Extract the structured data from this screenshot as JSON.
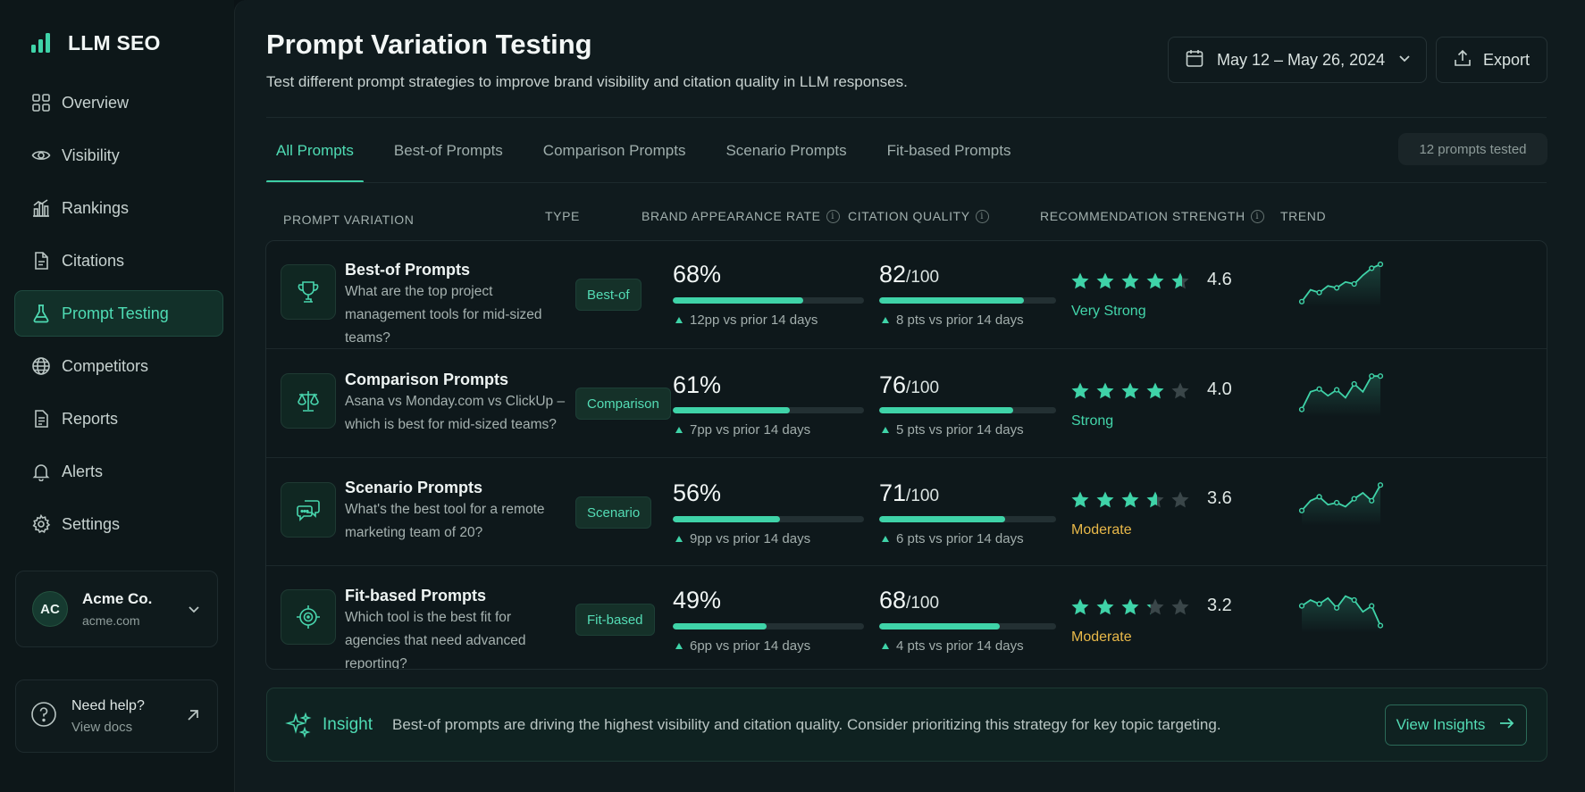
{
  "app": {
    "name": "LLM SEO"
  },
  "sidebar": {
    "items": [
      {
        "label": "Overview",
        "icon": "grid-icon"
      },
      {
        "label": "Visibility",
        "icon": "eye-icon"
      },
      {
        "label": "Rankings",
        "icon": "bar-chart-icon"
      },
      {
        "label": "Citations",
        "icon": "document-icon"
      },
      {
        "label": "Prompt Testing",
        "icon": "flask-icon",
        "active": true
      },
      {
        "label": "Competitors",
        "icon": "globe-icon"
      },
      {
        "label": "Reports",
        "icon": "report-icon"
      },
      {
        "label": "Alerts",
        "icon": "bell-icon"
      },
      {
        "label": "Settings",
        "icon": "gear-icon"
      }
    ],
    "account": {
      "initials": "AC",
      "name": "Acme Co.",
      "domain": "acme.com"
    },
    "help": {
      "title": "Need help?",
      "subtitle": "View docs"
    }
  },
  "header": {
    "title": "Prompt Variation Testing",
    "subtitle": "Test different prompt strategies to improve brand visibility and citation quality in LLM responses.",
    "date_range": "May 12 – May 26, 2024",
    "export_label": "Export"
  },
  "tabs": [
    {
      "label": "All Prompts",
      "active": true
    },
    {
      "label": "Best-of Prompts"
    },
    {
      "label": "Comparison Prompts"
    },
    {
      "label": "Scenario Prompts"
    },
    {
      "label": "Fit-based Prompts"
    }
  ],
  "tested_count": "12 prompts tested",
  "columns": {
    "prompt": "PROMPT VARIATION",
    "type": "TYPE",
    "brand": "BRAND APPEARANCE RATE",
    "citation": "CITATION QUALITY",
    "recommendation": "RECOMMENDATION STRENGTH",
    "trend": "TREND"
  },
  "rows": [
    {
      "title": "Best-of Prompts",
      "description": "What are the top project management tools for mid-sized teams?",
      "type": "Best-of",
      "icon": "trophy-icon",
      "brand_rate": "68%",
      "brand_fraction": 0.68,
      "brand_delta": "12pp vs prior 14 days",
      "citation_score": "82",
      "citation_suffix": "/100",
      "citation_fraction": 0.82,
      "citation_delta": "8 pts vs prior 14 days",
      "rating": 4.6,
      "rating_label": "4.6",
      "strength": "Very Strong",
      "strength_color": "#43d6ab",
      "trend": [
        0.05,
        0.35,
        0.28,
        0.45,
        0.4,
        0.55,
        0.5,
        0.72,
        0.9,
        1.0
      ]
    },
    {
      "title": "Comparison Prompts",
      "description": "Asana vs Monday.com vs ClickUp – which is best for mid-sized teams?",
      "type": "Comparison",
      "icon": "scales-icon",
      "brand_rate": "61%",
      "brand_fraction": 0.61,
      "brand_delta": "7pp vs prior 14 days",
      "citation_score": "76",
      "citation_suffix": "/100",
      "citation_fraction": 0.76,
      "citation_delta": "5 pts vs prior 14 days",
      "rating": 4.0,
      "rating_label": "4.0",
      "strength": "Strong",
      "strength_color": "#43d6ab",
      "trend": [
        0.1,
        0.55,
        0.62,
        0.45,
        0.6,
        0.4,
        0.75,
        0.55,
        0.95,
        0.95
      ]
    },
    {
      "title": "Scenario Prompts",
      "description": "What's the best tool for a remote marketing team of 20?",
      "type": "Scenario",
      "icon": "chat-icon",
      "brand_rate": "56%",
      "brand_fraction": 0.56,
      "brand_delta": "9pp vs prior 14 days",
      "citation_score": "71",
      "citation_suffix": "/100",
      "citation_fraction": 0.71,
      "citation_delta": "6 pts vs prior 14 days",
      "rating": 3.6,
      "rating_label": "3.6",
      "strength": "Moderate",
      "strength_color": "#e9b949",
      "trend": [
        0.3,
        0.55,
        0.65,
        0.45,
        0.5,
        0.4,
        0.6,
        0.75,
        0.55,
        0.95
      ]
    },
    {
      "title": "Fit-based Prompts",
      "description": "Which tool is the best fit for agencies that need advanced reporting?",
      "type": "Fit-based",
      "icon": "target-icon",
      "brand_rate": "49%",
      "brand_fraction": 0.49,
      "brand_delta": "6pp vs prior 14 days",
      "citation_score": "68",
      "citation_suffix": "/100",
      "citation_fraction": 0.68,
      "citation_delta": "4 pts vs prior 14 days",
      "rating": 3.2,
      "rating_label": "3.2",
      "strength": "Moderate",
      "strength_color": "#e9b949",
      "trend": [
        0.6,
        0.75,
        0.65,
        0.8,
        0.55,
        0.85,
        0.75,
        0.45,
        0.6,
        0.1
      ]
    }
  ],
  "insight": {
    "label": "Insight",
    "text": "Best-of prompts are driving the highest visibility and citation quality. Consider prioritizing this strategy for key topic targeting.",
    "button": "View Insights"
  },
  "colors": {
    "accent": "#3fd3a8",
    "moderate": "#e9b949",
    "background": "#0b1316"
  }
}
